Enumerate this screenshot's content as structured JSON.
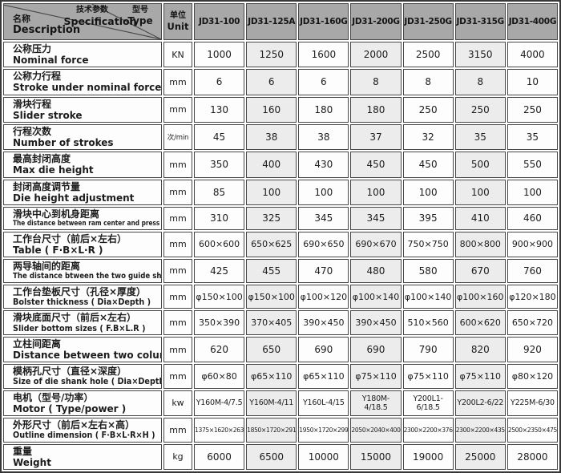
{
  "colors": {
    "header_bg": "#a8a8a8",
    "alt_col_bg": "#ececec",
    "border": "#474747",
    "text": "#1c1c1c"
  },
  "header": {
    "corner": {
      "spec_zh": "技术参数",
      "spec_en": "Specification",
      "type_zh": "型号",
      "type_en": "Type",
      "name_zh": "名称",
      "name_en": "Description"
    },
    "unit_zh": "单位",
    "unit_en": "Unit",
    "models": [
      "JD31-100",
      "JD31-125A",
      "JD31-160G",
      "JD31-200G",
      "JD31-250G",
      "JD31-315G",
      "JD31-400G"
    ]
  },
  "rows": [
    {
      "zh": "公称压力",
      "en": "Nominal force",
      "unit": "KN",
      "values": [
        "1000",
        "1250",
        "1600",
        "2000",
        "2500",
        "3150",
        "4000"
      ]
    },
    {
      "zh": "公称力行程",
      "en": "Stroke under nominal force",
      "unit": "mm",
      "values": [
        "6",
        "6",
        "6",
        "8",
        "8",
        "8",
        "10"
      ]
    },
    {
      "zh": "滑块行程",
      "en": "Slider stroke",
      "unit": "mm",
      "values": [
        "130",
        "160",
        "180",
        "180",
        "250",
        "250",
        "250"
      ]
    },
    {
      "zh": "行程次数",
      "en": "Number of strokes",
      "unit": "次/min",
      "values": [
        "45",
        "38",
        "38",
        "37",
        "32",
        "35",
        "35"
      ]
    },
    {
      "zh": "最高封闭高度",
      "en": "Max die height",
      "unit": "mm",
      "values": [
        "350",
        "400",
        "430",
        "450",
        "450",
        "500",
        "550"
      ]
    },
    {
      "zh": "封闭高度调节量",
      "en": "Die height adjustment",
      "unit": "mm",
      "values": [
        "85",
        "100",
        "100",
        "100",
        "100",
        "100",
        "100"
      ]
    },
    {
      "zh": "滑块中心到机身距离",
      "en": "The distance between ram center and press body",
      "unit": "mm",
      "values": [
        "310",
        "325",
        "345",
        "345",
        "395",
        "410",
        "460"
      ]
    },
    {
      "zh": "工作台尺寸（前后×左右）",
      "en": "Table ( F·B×L·R )",
      "unit": "mm",
      "values": [
        "600×600",
        "650×625",
        "690×650",
        "690×670",
        "750×750",
        "800×800",
        "900×900"
      ]
    },
    {
      "zh": "两导轴间的距离",
      "en": "The distance btween the two guide shaft",
      "unit": "mm",
      "values": [
        "425",
        "455",
        "470",
        "480",
        "580",
        "670",
        "760"
      ]
    },
    {
      "zh": "工作台垫板尺寸（孔径×厚度）",
      "en": "Bolster thickness ( Dia×Depth )",
      "unit": "mm",
      "values": [
        "φ150×100",
        "φ150×100",
        "φ100×120",
        "φ100×140",
        "φ100×140",
        "φ100×160",
        "φ120×180"
      ]
    },
    {
      "zh": "滑块底面尺寸（前后×左右）",
      "en": "Slider bottom sizes ( F.B×L.R )",
      "unit": "mm",
      "values": [
        "350×390",
        "370×405",
        "390×450",
        "390×450",
        "510×560",
        "600×620",
        "650×720"
      ]
    },
    {
      "zh": "立柱间距离",
      "en": "Distance between two columns",
      "unit": "mm",
      "values": [
        "620",
        "650",
        "690",
        "690",
        "790",
        "820",
        "920"
      ]
    },
    {
      "zh": "模柄孔尺寸（直径×深度）",
      "en": "Size of die shank hole ( Dia×Depth )",
      "unit": "mm",
      "values": [
        "φ60×80",
        "φ65×110",
        "φ65×110",
        "φ75×110",
        "φ75×110",
        "φ75×110",
        "φ80×120"
      ]
    },
    {
      "zh": "电机（型号/功率）",
      "en": "Motor ( Type/power )",
      "unit": "kw",
      "values": [
        "Y160M-4/7.5",
        "Y160M-4/11",
        "Y160L-4/15",
        "Y180M-4/18.5",
        "Y200L1-6/18.5",
        "Y200L2-6/22",
        "Y225M-6/30"
      ]
    },
    {
      "zh": "外形尺寸（前后×左右×高）",
      "en": "Outline dimension ( F·B×L·R×H )",
      "unit": "mm",
      "values": [
        "1375×1620×2630",
        "1850×1720×2915",
        "1950×1720×2997",
        "2050×2040×4000",
        "2300×2200×3760",
        "2300×2200×4350",
        "2500×2350×4750"
      ]
    },
    {
      "zh": "重量",
      "en": "Weight",
      "unit": "kg",
      "values": [
        "6000",
        "6500",
        "10000",
        "15000",
        "19000",
        "25000",
        "28000"
      ]
    }
  ]
}
